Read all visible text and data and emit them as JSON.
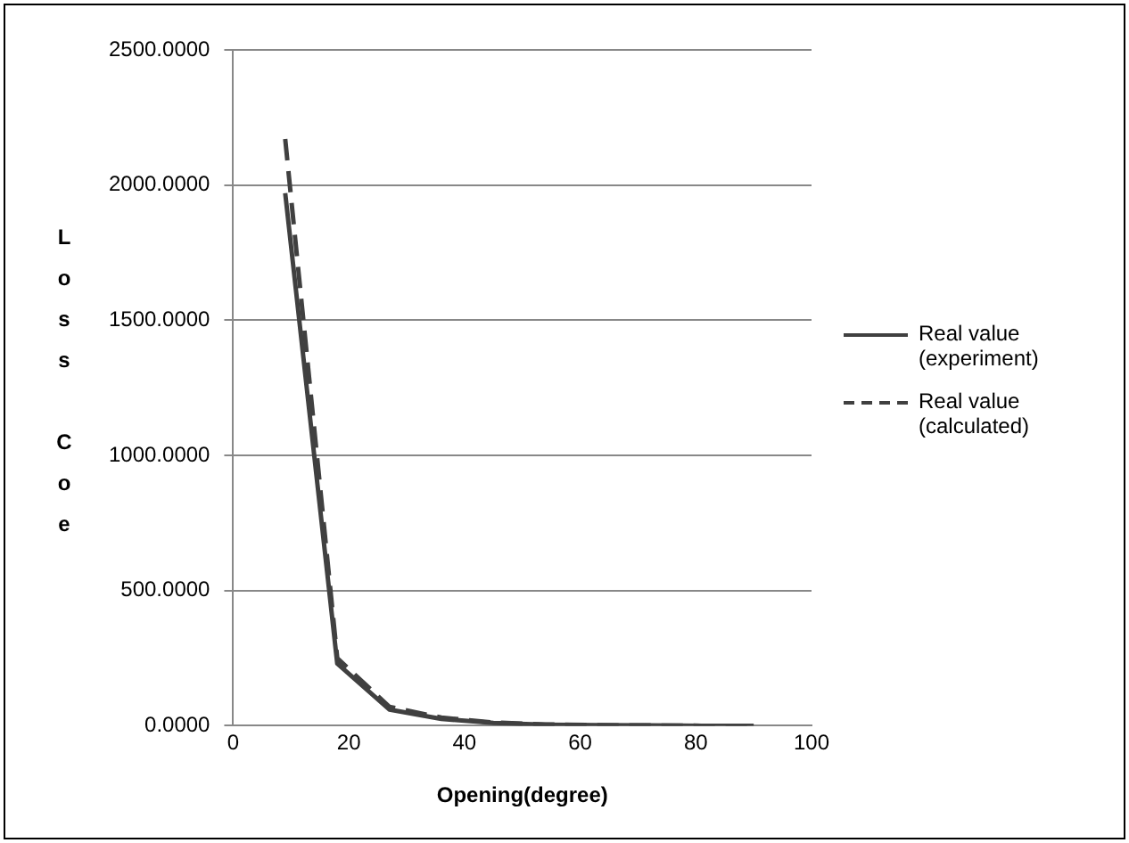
{
  "chart_data": {
    "type": "line",
    "xlabel": "Opening(degree)",
    "ylabel": "Loss Coe",
    "x": [
      9,
      18,
      27,
      36,
      45,
      54,
      63,
      72,
      81,
      90
    ],
    "series": [
      {
        "name": "Real value (experiment)",
        "color": "#404040",
        "line_style": "solid",
        "values": [
          1970,
          230,
          60,
          25,
          10,
          4,
          2,
          1,
          0,
          0
        ]
      },
      {
        "name": "Real value (calculated)",
        "color": "#404040",
        "line_style": "dashed",
        "values": [
          2170,
          250,
          70,
          30,
          12,
          5,
          2,
          1,
          0,
          0
        ]
      }
    ],
    "xlim": [
      0,
      100
    ],
    "xticks": [
      0,
      20,
      40,
      60,
      80,
      100
    ],
    "ylim": [
      0,
      2500
    ],
    "yticks": [
      {
        "value": 0,
        "label": "0.0000"
      },
      {
        "value": 500,
        "label": "500.0000"
      },
      {
        "value": 1000,
        "label": "1000.0000"
      },
      {
        "value": 1500,
        "label": "1500.0000"
      },
      {
        "value": 2000,
        "label": "2000.0000"
      },
      {
        "value": 2500,
        "label": "2500.0000"
      }
    ],
    "grid": "y",
    "legend": "right",
    "marker": "none"
  }
}
